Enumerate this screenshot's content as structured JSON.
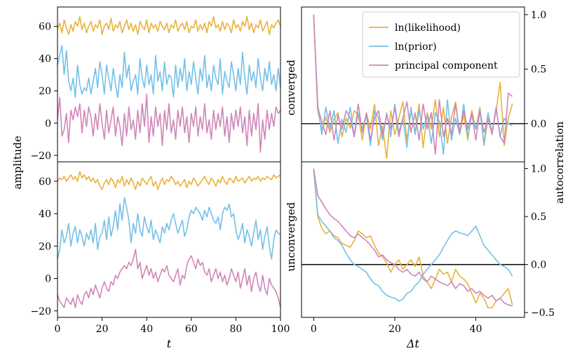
{
  "figure": {
    "ylabel_left": "amplitude",
    "ylabel_right": "autocorrelation",
    "row_labels": [
      {
        "text": "converged",
        "color": "#2ca58d"
      },
      {
        "text": "unconverged",
        "color": "#e39a2d"
      }
    ]
  },
  "chart_data": [
    {
      "type": "line",
      "panel": "top-left",
      "xlabel": "",
      "ylabel": "amplitude",
      "xlim": [
        0,
        100
      ],
      "ylim": [
        -24,
        72
      ],
      "yticks": [
        -20,
        0,
        20,
        40,
        60
      ],
      "ytick_labels": [
        "−20",
        "0",
        "20",
        "40",
        "60"
      ],
      "series": [
        {
          "name": "ln(likelihood)",
          "color": "#e8b23a",
          "values": [
            58,
            62,
            56,
            64,
            59,
            55,
            61,
            57,
            63,
            60,
            66,
            58,
            62,
            56,
            60,
            63,
            57,
            61,
            59,
            64,
            55,
            60,
            62,
            58,
            65,
            57,
            61,
            59,
            63,
            56,
            60,
            64,
            58,
            62,
            57,
            61,
            55,
            63,
            60,
            58,
            64,
            56,
            62,
            59,
            61,
            57,
            63,
            60,
            58,
            62,
            56,
            61,
            59,
            64,
            57,
            60,
            62,
            58,
            63,
            56,
            60,
            59,
            64,
            57,
            61,
            58,
            62,
            56,
            63,
            60,
            66,
            59,
            61,
            57,
            63,
            58,
            62,
            60,
            56,
            64,
            59,
            61,
            57,
            63,
            60,
            66,
            58,
            62,
            56,
            61,
            59,
            64,
            57,
            60,
            63,
            55,
            61,
            59,
            62,
            64,
            60
          ]
        },
        {
          "name": "ln(prior)",
          "color": "#74c0e8",
          "values": [
            36,
            42,
            48,
            30,
            45,
            26,
            20,
            28,
            16,
            36,
            24,
            18,
            22,
            20,
            28,
            18,
            26,
            34,
            22,
            38,
            30,
            18,
            36,
            28,
            20,
            34,
            24,
            16,
            30,
            22,
            44,
            28,
            36,
            20,
            26,
            30,
            18,
            40,
            28,
            22,
            36,
            24,
            30,
            18,
            42,
            26,
            32,
            20,
            38,
            24,
            30,
            28,
            16,
            36,
            22,
            34,
            26,
            40,
            20,
            32,
            24,
            38,
            28,
            18,
            34,
            26,
            42,
            22,
            30,
            20,
            36,
            28,
            24,
            40,
            18,
            32,
            26,
            22,
            38,
            30,
            20,
            34,
            24,
            44,
            28,
            18,
            36,
            26,
            32,
            22,
            40,
            28,
            20,
            34,
            26,
            38,
            24,
            30,
            20,
            34,
            22
          ]
        },
        {
          "name": "principal component",
          "color": "#cf86b8",
          "values": [
            2,
            16,
            -8,
            -4,
            6,
            -12,
            8,
            2,
            10,
            4,
            12,
            -6,
            8,
            -2,
            10,
            4,
            -8,
            6,
            -4,
            12,
            0,
            -10,
            8,
            -6,
            2,
            10,
            -8,
            4,
            -2,
            -14,
            6,
            -8,
            10,
            -4,
            2,
            -10,
            8,
            -6,
            12,
            -2,
            18,
            -12,
            4,
            -8,
            10,
            -2,
            6,
            -14,
            8,
            -4,
            12,
            -6,
            2,
            -10,
            8,
            -2,
            10,
            -6,
            4,
            -12,
            6,
            -2,
            10,
            -8,
            4,
            -4,
            12,
            -6,
            2,
            -10,
            8,
            -4,
            6,
            -2,
            10,
            -8,
            4,
            -12,
            6,
            -4,
            8,
            -2,
            10,
            -6,
            4,
            -14,
            8,
            -8,
            6,
            -4,
            12,
            -18,
            2,
            -10,
            8,
            -4,
            6,
            -2,
            10,
            6,
            8
          ]
        }
      ]
    },
    {
      "type": "line",
      "panel": "bottom-left",
      "xlabel": "t",
      "ylabel": "amplitude",
      "xlim": [
        0,
        100
      ],
      "ylim": [
        -24,
        72
      ],
      "xticks": [
        0,
        20,
        40,
        60,
        80,
        100
      ],
      "xtick_labels": [
        "0",
        "20",
        "40",
        "60",
        "80",
        "100"
      ],
      "yticks": [
        -20,
        0,
        20,
        40,
        60
      ],
      "ytick_labels": [
        "−20",
        "0",
        "20",
        "40",
        "60"
      ],
      "series": [
        {
          "name": "ln(likelihood)",
          "color": "#e8b23a",
          "values": [
            60,
            62,
            61,
            63,
            60,
            62,
            64,
            61,
            63,
            60,
            66,
            62,
            64,
            61,
            63,
            60,
            62,
            59,
            61,
            57,
            55,
            59,
            61,
            58,
            62,
            60,
            56,
            61,
            59,
            63,
            57,
            61,
            58,
            62,
            59,
            55,
            60,
            57,
            62,
            60,
            58,
            61,
            63,
            57,
            60,
            55,
            59,
            62,
            58,
            61,
            60,
            63,
            61,
            58,
            60,
            57,
            59,
            61,
            56,
            60,
            58,
            62,
            60,
            57,
            59,
            61,
            63,
            60,
            58,
            62,
            60,
            57,
            61,
            59,
            63,
            60,
            58,
            62,
            61,
            59,
            63,
            60,
            61,
            62,
            59,
            61,
            63,
            60,
            62,
            61,
            63,
            60,
            62,
            61,
            63,
            62,
            61,
            64,
            62,
            63,
            64
          ]
        },
        {
          "name": "ln(prior)",
          "color": "#74c0e8",
          "values": [
            12,
            18,
            30,
            22,
            26,
            34,
            20,
            28,
            32,
            22,
            30,
            26,
            20,
            28,
            24,
            30,
            22,
            34,
            18,
            26,
            28,
            36,
            24,
            38,
            26,
            32,
            42,
            30,
            46,
            36,
            50,
            44,
            36,
            22,
            34,
            28,
            40,
            30,
            26,
            38,
            32,
            28,
            36,
            24,
            30,
            26,
            22,
            32,
            28,
            34,
            30,
            36,
            40,
            34,
            28,
            32,
            36,
            26,
            30,
            38,
            42,
            40,
            44,
            42,
            40,
            36,
            42,
            38,
            44,
            40,
            36,
            34,
            38,
            30,
            40,
            44,
            42,
            46,
            38,
            40,
            30,
            24,
            28,
            34,
            22,
            30,
            26,
            20,
            28,
            36,
            24,
            30,
            18,
            26,
            32,
            20,
            12,
            24,
            30,
            28,
            27
          ]
        },
        {
          "name": "principal component",
          "color": "#cf86b8",
          "values": [
            -10,
            -14,
            -16,
            -18,
            -12,
            -14,
            -16,
            -12,
            -18,
            -10,
            -14,
            -16,
            -10,
            -8,
            -12,
            -6,
            -10,
            -4,
            -8,
            -12,
            -6,
            -2,
            -6,
            -8,
            -2,
            -4,
            2,
            0,
            4,
            6,
            8,
            6,
            10,
            8,
            12,
            18,
            6,
            10,
            0,
            4,
            8,
            2,
            6,
            0,
            4,
            -2,
            2,
            6,
            4,
            8,
            2,
            0,
            -2,
            2,
            6,
            -4,
            2,
            0,
            8,
            12,
            14,
            10,
            6,
            12,
            8,
            10,
            4,
            2,
            6,
            -2,
            2,
            6,
            0,
            4,
            -2,
            2,
            -4,
            0,
            6,
            2,
            -2,
            4,
            -6,
            0,
            6,
            -4,
            2,
            -8,
            0,
            4,
            -4,
            -8,
            2,
            -6,
            -10,
            0,
            -4,
            -6,
            -8,
            -12,
            -18
          ]
        }
      ]
    },
    {
      "type": "line",
      "panel": "top-right",
      "xlabel": "",
      "ylabel": "autocorrelation",
      "row_label": "converged",
      "xlim": [
        -3,
        52
      ],
      "ylim": [
        -0.35,
        1.07
      ],
      "yticks": [
        0.0,
        0.5,
        1.0
      ],
      "ytick_labels": [
        "0.0",
        "0.5",
        "1.0"
      ],
      "zero_line": true,
      "legend": "top-right",
      "series": [
        {
          "name": "ln(likelihood)",
          "color": "#e8b23a",
          "values": [
            1.0,
            0.12,
            -0.05,
            0.06,
            -0.08,
            0.04,
            0.1,
            -0.12,
            0.05,
            -0.04,
            0.12,
            0.08,
            -0.15,
            0.1,
            -0.05,
            0.18,
            -0.2,
            -0.02,
            -0.32,
            0.12,
            -0.1,
            0.05,
            0.2,
            -0.15,
            0.12,
            -0.08,
            0.18,
            -0.22,
            0.1,
            -0.05,
            0.22,
            -0.12,
            0.15,
            -0.18,
            0.06,
            0.2,
            -0.1,
            0.08,
            -0.15,
            0.12,
            -0.05,
            0.15,
            -0.2,
            0.05,
            -0.08,
            0.12,
            0.38,
            -0.2,
            0.05,
            0.18
          ]
        },
        {
          "name": "ln(prior)",
          "color": "#74c0e8",
          "values": [
            1.0,
            0.18,
            -0.1,
            0.15,
            -0.05,
            0.12,
            -0.18,
            0.04,
            -0.08,
            0.15,
            -0.12,
            0.1,
            -0.05,
            0.08,
            -0.2,
            0.12,
            0.05,
            -0.15,
            0.1,
            -0.12,
            0.18,
            -0.08,
            0.05,
            -0.22,
            0.15,
            -0.1,
            0.12,
            -0.05,
            0.08,
            -0.18,
            0.1,
            0.02,
            -0.28,
            0.22,
            -0.15,
            0.05,
            -0.1,
            0.18,
            -0.12,
            0.08,
            -0.05,
            0.12,
            -0.18,
            0.1,
            -0.08,
            0.15,
            -0.12,
            0.05,
            0.0,
            -0.02
          ]
        },
        {
          "name": "principal component",
          "color": "#cf86b8",
          "values": [
            1.0,
            0.15,
            0.02,
            -0.1,
            0.12,
            -0.15,
            0.08,
            -0.05,
            0.12,
            0.05,
            -0.12,
            0.18,
            -0.08,
            0.1,
            -0.15,
            0.05,
            0.12,
            -0.1,
            0.08,
            -0.05,
            0.15,
            -0.12,
            0.05,
            0.2,
            -0.08,
            0.1,
            -0.15,
            0.18,
            -0.05,
            0.1,
            -0.28,
            0.22,
            -0.12,
            0.05,
            -0.1,
            0.18,
            -0.08,
            0.12,
            -0.05,
            0.1,
            -0.15,
            0.12,
            -0.08,
            0.05,
            -0.1,
            0.15,
            -0.12,
            -0.18,
            0.28,
            0.25
          ]
        }
      ]
    },
    {
      "type": "line",
      "panel": "bottom-right",
      "xlabel": "Δt",
      "ylabel": "autocorrelation",
      "row_label": "unconverged",
      "xlim": [
        -3,
        52
      ],
      "ylim": [
        -0.55,
        1.07
      ],
      "xticks": [
        0,
        20,
        40
      ],
      "xtick_labels": [
        "0",
        "20",
        "40"
      ],
      "yticks": [
        -0.5,
        0.0,
        0.5,
        1.0
      ],
      "ytick_labels": [
        "−0.5",
        "0.0",
        "0.5",
        "1.0"
      ],
      "zero_line": true,
      "series": [
        {
          "name": "ln(likelihood)",
          "color": "#e8b23a",
          "values": [
            1.0,
            0.5,
            0.38,
            0.32,
            0.35,
            0.3,
            0.28,
            0.22,
            0.2,
            0.18,
            0.25,
            0.35,
            0.32,
            0.28,
            0.3,
            0.2,
            0.12,
            0.08,
            0.02,
            -0.08,
            0.0,
            0.05,
            -0.05,
            0.0,
            0.05,
            -0.02,
            0.08,
            -0.12,
            -0.18,
            -0.25,
            -0.15,
            -0.05,
            -0.1,
            -0.08,
            -0.18,
            -0.05,
            -0.12,
            -0.15,
            -0.2,
            -0.3,
            -0.4,
            -0.3,
            -0.35,
            -0.45,
            -0.45,
            -0.38,
            -0.35,
            -0.3,
            -0.25,
            -0.42
          ]
        },
        {
          "name": "ln(prior)",
          "color": "#74c0e8",
          "values": [
            1.0,
            0.52,
            0.45,
            0.4,
            0.35,
            0.28,
            0.25,
            0.2,
            0.12,
            0.05,
            0.0,
            -0.02,
            -0.05,
            -0.08,
            -0.15,
            -0.2,
            -0.22,
            -0.28,
            -0.32,
            -0.34,
            -0.35,
            -0.38,
            -0.36,
            -0.3,
            -0.28,
            -0.22,
            -0.18,
            -0.1,
            -0.05,
            0.0,
            0.05,
            0.1,
            0.18,
            0.25,
            0.32,
            0.35,
            0.33,
            0.32,
            0.3,
            0.35,
            0.4,
            0.3,
            0.2,
            0.15,
            0.1,
            0.05,
            0.0,
            -0.02,
            -0.05,
            -0.12
          ]
        },
        {
          "name": "principal component",
          "color": "#cf86b8",
          "values": [
            1.0,
            0.72,
            0.65,
            0.58,
            0.52,
            0.48,
            0.45,
            0.4,
            0.35,
            0.3,
            0.28,
            0.32,
            0.28,
            0.25,
            0.2,
            0.15,
            0.08,
            0.1,
            0.05,
            0.02,
            0.0,
            -0.05,
            -0.08,
            -0.05,
            -0.1,
            -0.12,
            -0.08,
            -0.15,
            -0.18,
            -0.12,
            -0.15,
            -0.18,
            -0.2,
            -0.22,
            -0.18,
            -0.25,
            -0.2,
            -0.22,
            -0.28,
            -0.25,
            -0.3,
            -0.28,
            -0.32,
            -0.35,
            -0.32,
            -0.38,
            -0.35,
            -0.4,
            -0.42,
            -0.43
          ]
        }
      ]
    }
  ]
}
